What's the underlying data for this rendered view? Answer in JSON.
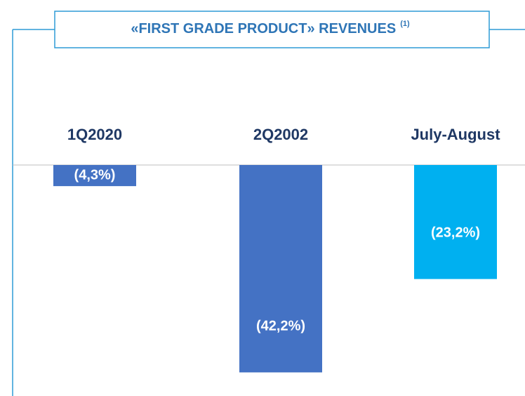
{
  "chart_data": {
    "type": "bar",
    "title": "«FIRST GRADE PRODUCT» REVENUES",
    "title_superscript": "(1)",
    "categories": [
      "1Q2020",
      "2Q2002",
      "July-August"
    ],
    "values": [
      -4.3,
      -42.2,
      -23.2
    ],
    "value_labels": [
      "(4,3%)",
      "(42,2%)",
      "(23,2%)"
    ],
    "colors": [
      "#4472c4",
      "#4472c4",
      "#00b0f0"
    ],
    "ylim": [
      -45,
      0
    ]
  }
}
